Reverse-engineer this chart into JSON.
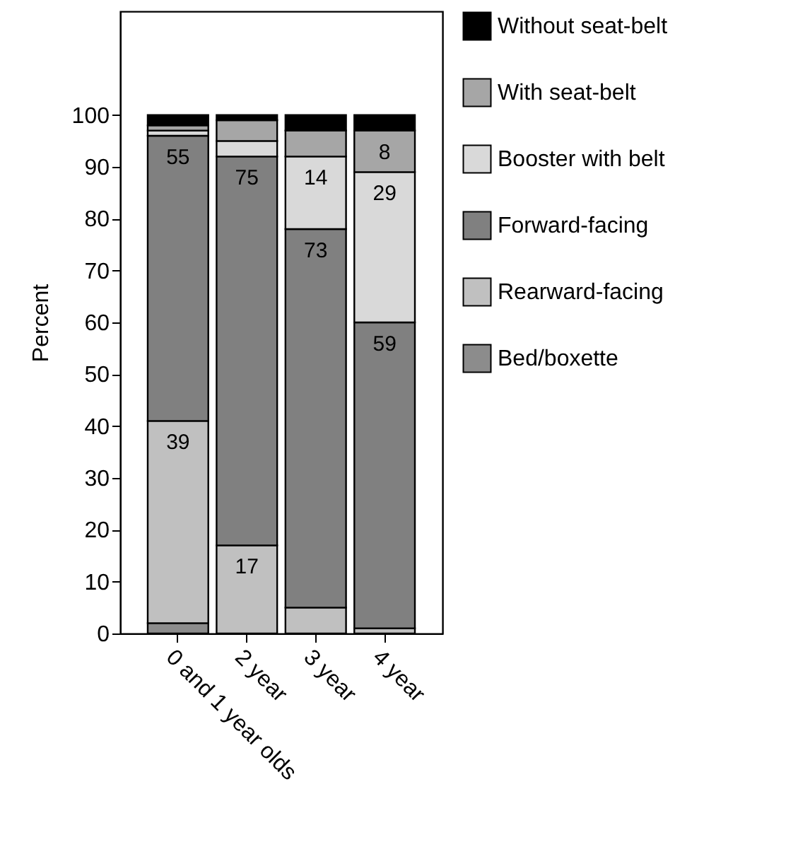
{
  "chart_data": {
    "type": "bar",
    "stacked": true,
    "ylabel": "Percent",
    "categories": [
      "0 and 1 year olds",
      "2 year",
      "3 year",
      "4 year"
    ],
    "ylim": [
      0,
      120
    ],
    "yticks": [
      0,
      10,
      20,
      30,
      40,
      50,
      60,
      70,
      80,
      90,
      100
    ],
    "grid": false,
    "legend": "right",
    "series": [
      {
        "name": "Bed/boxette",
        "color": "#8c8c8c",
        "values": [
          2,
          0,
          0,
          0
        ]
      },
      {
        "name": "Rearward-facing",
        "color": "#c0c0c0",
        "values": [
          39,
          17,
          5,
          1
        ],
        "value_labels": [
          "39",
          "17",
          null,
          null
        ]
      },
      {
        "name": "Forward-facing",
        "color": "#808080",
        "values": [
          55,
          75,
          73,
          59
        ],
        "value_labels": [
          "55",
          "75",
          "73",
          "59"
        ]
      },
      {
        "name": "Booster with belt",
        "color": "#d9d9d9",
        "values": [
          1,
          3,
          14,
          29
        ],
        "value_labels": [
          null,
          null,
          "14",
          "29"
        ]
      },
      {
        "name": "With seat-belt",
        "color": "#a6a6a6",
        "values": [
          1,
          4,
          5,
          8
        ],
        "value_labels": [
          null,
          null,
          null,
          "8"
        ]
      },
      {
        "name": "Without seat-belt",
        "color": "#000000",
        "values": [
          2,
          1,
          3,
          3
        ]
      }
    ]
  }
}
